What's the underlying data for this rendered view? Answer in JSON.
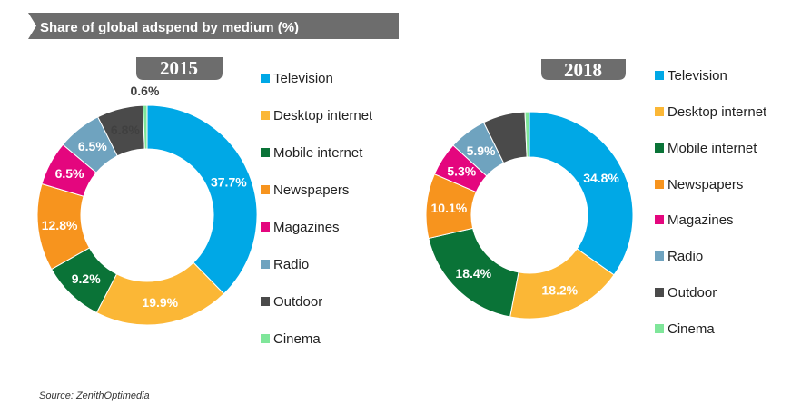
{
  "title": "Share of global adspend by medium (%)",
  "source": "Source: ZenithOptimedia",
  "colors": {
    "Television": "#00a8e6",
    "Desktop internet": "#fbb736",
    "Mobile internet": "#0a7337",
    "Newspapers": "#f7941e",
    "Magazines": "#e4067e",
    "Radio": "#6fa3bf",
    "Outdoor": "#4a4a4a",
    "Cinema": "#7fe69a",
    "banner": "#6d6d6d"
  },
  "chart_data": [
    {
      "type": "pie",
      "year": "2015",
      "categories": [
        "Television",
        "Desktop internet",
        "Mobile internet",
        "Newspapers",
        "Magazines",
        "Radio",
        "Outdoor",
        "Cinema"
      ],
      "values": [
        37.7,
        19.9,
        9.2,
        12.8,
        6.5,
        6.5,
        6.8,
        0.6
      ],
      "labels": [
        "37.7%",
        "19.9%",
        "9.2%",
        "12.8%",
        "6.5%",
        "6.5%",
        "6.8%",
        "0.6%"
      ]
    },
    {
      "type": "pie",
      "year": "2018",
      "categories": [
        "Television",
        "Desktop internet",
        "Mobile internet",
        "Newspapers",
        "Magazines",
        "Radio",
        "Outdoor",
        "Cinema"
      ],
      "values": [
        34.8,
        18.2,
        18.4,
        10.1,
        5.3,
        5.9,
        6.6,
        0.7
      ],
      "labels": [
        "34.8%",
        "18.2%",
        "18.4%",
        "10.1%",
        "5.3%",
        "5.9%",
        "",
        ""
      ]
    }
  ]
}
